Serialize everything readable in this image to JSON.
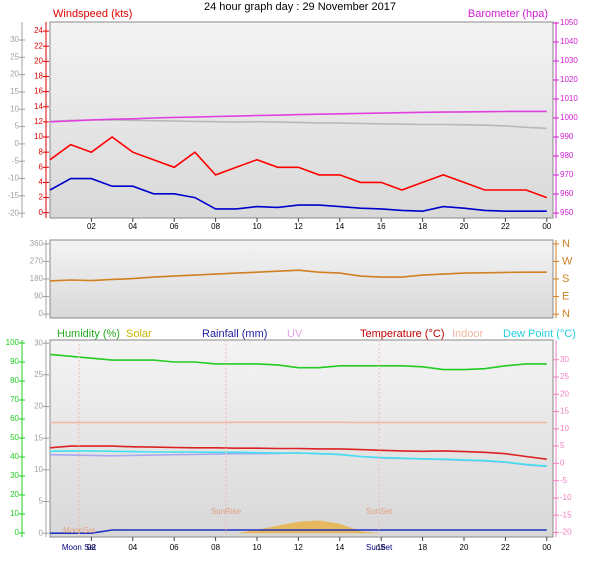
{
  "chart_data": [
    {
      "type": "line",
      "title": "24 hour graph day : 29 November 2017",
      "legend": [
        {
          "text": "Windspeed (kts)",
          "color": "#e00000"
        },
        {
          "text": "Barometer (hpa)",
          "color": "#d020d0"
        }
      ],
      "x": [
        0,
        1,
        2,
        3,
        4,
        5,
        6,
        7,
        8,
        9,
        10,
        11,
        12,
        13,
        14,
        15,
        16,
        17,
        18,
        19,
        20,
        21,
        22,
        23,
        24
      ],
      "xlim": [
        0,
        24.3
      ],
      "xticks": [
        {
          "value": 2,
          "label": "02"
        },
        {
          "value": 4,
          "label": "04"
        },
        {
          "value": 6,
          "label": "06"
        },
        {
          "value": 8,
          "label": "08"
        },
        10,
        12,
        14,
        16,
        18,
        20,
        22,
        {
          "value": 24,
          "label": "00"
        }
      ],
      "ylim": [
        -0.7,
        25.2
      ],
      "yticks": [
        0,
        2,
        4,
        6,
        8,
        10,
        12,
        14,
        16,
        18,
        20,
        22,
        24
      ],
      "y2lim": [
        947.4,
        1050.5
      ],
      "y2ticks": [
        950,
        960,
        970,
        980,
        990,
        1000,
        1010,
        1020,
        1030,
        1040,
        1050
      ],
      "y3lim": [
        -21.4,
        35.2
      ],
      "y3ticks": [
        -20,
        -15,
        -10,
        -5,
        0,
        5,
        10,
        15,
        20,
        25,
        30
      ],
      "axis_colors": {
        "y": "#e00000",
        "y2": "#d020d0",
        "y3": "#a0a0a0"
      },
      "series": [
        {
          "color": "#b8b8b8",
          "axis": "y3",
          "values": [
            6.5,
            6.8,
            6.9,
            6.9,
            6.8,
            6.7,
            6.6,
            6.5,
            6.4,
            6.3,
            6.4,
            6.3,
            6.2,
            6.0,
            6.0,
            5.9,
            5.8,
            5.7,
            5.6,
            5.6,
            5.5,
            5.4,
            5.2,
            4.8,
            4.5
          ]
        },
        {
          "color": "#e040e0",
          "axis": "y2",
          "values": [
            998,
            998.5,
            999,
            999.3,
            999.6,
            1000,
            1000.3,
            1000.5,
            1000.8,
            1001,
            1001.3,
            1001.5,
            1001.8,
            1002,
            1002.2,
            1002.4,
            1002.6,
            1002.8,
            1003,
            1003.1,
            1003.2,
            1003.3,
            1003.4,
            1003.5,
            1003.5
          ]
        },
        {
          "color": "#ff0000",
          "values": [
            7,
            9,
            8,
            10,
            8,
            7,
            6,
            8,
            5,
            6,
            7,
            6,
            6,
            5,
            5,
            4,
            4,
            3,
            4,
            5,
            4,
            3,
            3,
            3,
            2
          ]
        },
        {
          "color": "#0000cc",
          "values": [
            3,
            4.5,
            4.5,
            3.5,
            3.5,
            2.5,
            2.5,
            2,
            0.5,
            0.5,
            0.8,
            0.7,
            1,
            1,
            0.8,
            0.6,
            0.5,
            0.3,
            0.2,
            0.8,
            0.6,
            0.3,
            0.2,
            0.2,
            0.2
          ]
        }
      ]
    },
    {
      "type": "line",
      "x": [
        0,
        1,
        2,
        3,
        4,
        5,
        6,
        7,
        8,
        9,
        10,
        11,
        12,
        13,
        14,
        15,
        16,
        17,
        18,
        19,
        20,
        21,
        22,
        23,
        24
      ],
      "xlim": [
        0,
        24.3
      ],
      "ylim": [
        -20,
        380
      ],
      "yticks": [
        0,
        90,
        180,
        270,
        360
      ],
      "y2lim": [
        -20,
        380
      ],
      "y2ticks": [
        {
          "value": 0,
          "label": "N"
        },
        {
          "value": 90,
          "label": "E"
        },
        {
          "value": 180,
          "label": "S"
        },
        {
          "value": 270,
          "label": "W"
        },
        {
          "value": 360,
          "label": "N"
        }
      ],
      "axis_colors": {
        "y": "#a0a0a0",
        "y2": "#d08020"
      },
      "series": [
        {
          "color": "#d08020",
          "values": [
            170,
            175,
            172,
            178,
            182,
            190,
            195,
            200,
            205,
            210,
            215,
            220,
            225,
            215,
            210,
            195,
            190,
            190,
            200,
            205,
            210,
            212,
            214,
            215,
            215
          ]
        }
      ]
    },
    {
      "type": "line",
      "legend": [
        {
          "text": "Humidity (%)",
          "color": "#22aa22"
        },
        {
          "text": "Solar",
          "color": "#c8b400"
        },
        {
          "text": "Rainfall (mm)",
          "color": "#2020a0"
        },
        {
          "text": "UV",
          "color": "#e8a0e8"
        },
        {
          "text": "Temperature (°C)",
          "color": "#c00000"
        },
        {
          "text": "Indoor",
          "color": "#f0b8a0"
        },
        {
          "text": "Dew Point (°C)",
          "color": "#20d0e0"
        }
      ],
      "x": [
        0,
        1,
        2,
        3,
        4,
        5,
        6,
        7,
        8,
        9,
        10,
        11,
        12,
        13,
        14,
        15,
        16,
        17,
        18,
        19,
        20,
        21,
        22,
        23,
        24
      ],
      "xlim": [
        0,
        24.3
      ],
      "xticks": [
        {
          "value": 2,
          "label": "02"
        },
        {
          "value": 4,
          "label": "04"
        },
        {
          "value": 6,
          "label": "06"
        },
        {
          "value": 8,
          "label": "08"
        },
        10,
        12,
        14,
        16,
        18,
        20,
        22,
        {
          "value": 24,
          "label": "00"
        }
      ],
      "ylim": [
        -0.6,
        30.5
      ],
      "yticks": [
        0,
        5,
        10,
        15,
        20,
        25,
        30
      ],
      "y2lim": [
        -21.3,
        35.7
      ],
      "y2ticks": [
        -20,
        -15,
        -10,
        -5,
        0,
        5,
        10,
        15,
        20,
        25,
        30
      ],
      "y3lim": [
        -2.1,
        101.6
      ],
      "y3ticks": [
        0,
        10,
        20,
        30,
        40,
        50,
        60,
        70,
        80,
        90,
        100
      ],
      "axis_colors": {
        "y": "#a0a0a0",
        "y2": "#f080c0",
        "y3": "#22cc22"
      },
      "annotations": [
        {
          "text": "MoonSet",
          "x": 1.4
        },
        {
          "text": "SunRise",
          "x": 8.5
        },
        {
          "text": "SunSet",
          "x": 15.9
        }
      ],
      "x_markers": [
        {
          "text": "Moon Set",
          "x": 1.4
        },
        {
          "text": "SunSet",
          "x": 15.9
        }
      ],
      "series": [
        {
          "color": "#e8b040",
          "fill": true,
          "values": [
            0,
            0,
            0,
            0,
            0,
            0,
            0,
            0,
            0,
            0,
            0.5,
            1.2,
            1.8,
            2.0,
            1.5,
            0.3,
            0,
            0,
            0,
            0,
            0,
            0,
            0,
            0,
            0
          ]
        },
        {
          "color": "#f0b8a8",
          "axis": "y2",
          "values": [
            11.8,
            11.8,
            11.8,
            11.8,
            11.8,
            11.8,
            11.8,
            11.8,
            11.8,
            11.9,
            11.9,
            11.9,
            11.9,
            11.9,
            11.9,
            11.8,
            11.8,
            11.8,
            11.8,
            11.8,
            11.8,
            11.8,
            11.8,
            11.8,
            11.8
          ]
        },
        {
          "color": "#22cc22",
          "axis": "y3",
          "values": [
            94,
            93,
            92,
            91,
            91,
            91,
            90,
            90,
            89,
            89,
            89,
            88.5,
            87,
            87,
            88,
            88,
            88,
            88,
            87.5,
            86,
            86,
            86.5,
            88,
            89,
            89
          ]
        },
        {
          "color": "#a8a8f0",
          "axis": "y2",
          "values": [
            2.5,
            2.4,
            2.3,
            2.2,
            2.3,
            2.4,
            2.5,
            2.6,
            2.7,
            2.8,
            2.8,
            2.9,
            3.0,
            2.8,
            2.6,
            2.0,
            1.6,
            1.4,
            1.3,
            1.1,
            0.9,
            0.7,
            0.3,
            -0.4,
            -0.9
          ]
        },
        {
          "color": "#40e0f0",
          "axis": "y2",
          "values": [
            3.5,
            3.6,
            3.6,
            3.5,
            3.4,
            3.3,
            3.3,
            3.3,
            3.2,
            3.2,
            3.1,
            3.0,
            3.0,
            2.8,
            2.6,
            2.0,
            1.7,
            1.5,
            1.3,
            1.2,
            1.0,
            0.8,
            0.4,
            -0.3,
            -0.8
          ]
        },
        {
          "color": "#dd2222",
          "axis": "y2",
          "values": [
            4.5,
            5,
            5,
            5,
            4.8,
            4.7,
            4.6,
            4.5,
            4.5,
            4.4,
            4.4,
            4.3,
            4.3,
            4.2,
            4.2,
            4.0,
            3.8,
            3.6,
            3.5,
            3.6,
            3.4,
            3.2,
            2.8,
            2.0,
            1.2
          ]
        },
        {
          "color": "#2030c0",
          "values": [
            0,
            0,
            0,
            0.5,
            0.5,
            0.5,
            0.5,
            0.5,
            0.5,
            0.5,
            0.5,
            0.5,
            0.5,
            0.5,
            0.5,
            0.5,
            0.5,
            0.5,
            0.5,
            0.5,
            0.5,
            0.5,
            0.5,
            0.5,
            0.5
          ]
        }
      ]
    }
  ]
}
